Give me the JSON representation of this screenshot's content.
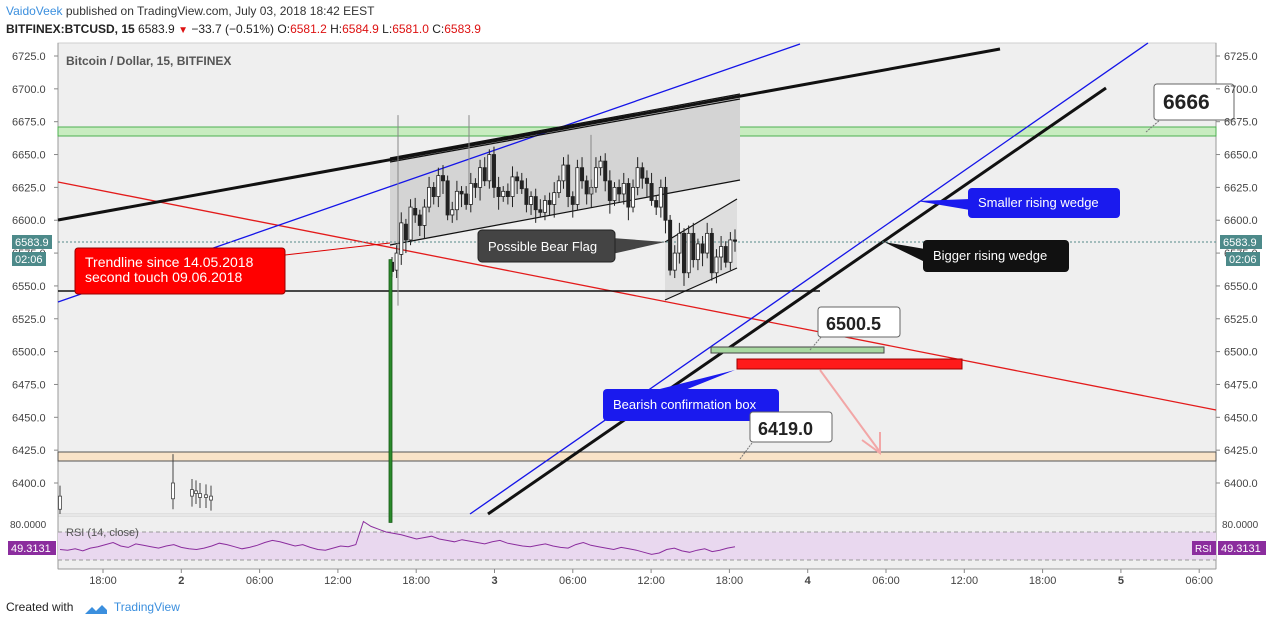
{
  "header": {
    "author": "VaidoVeek",
    "published_text": "published on TradingView.com, July 03, 2018 18:42 EEST",
    "symbol": "BITFINEX:BTCUSD, 15",
    "last": "6583.9",
    "change": "−33.7 (−0.51%)",
    "o_label": "O:",
    "o": "6581.2",
    "h_label": "H:",
    "h": "6584.9",
    "l_label": "L:",
    "l": "6581.0",
    "c_label": "C:",
    "c": "6583.9"
  },
  "footer": {
    "created_with": "Created with",
    "brand": "TradingView"
  },
  "colors": {
    "price_box": "#7a7a7a",
    "candle": "#222222",
    "green_zone": "#c8ecc0",
    "orange_zone": "#f9e3c8",
    "red_line": "#e31b1b",
    "blue_line": "#1414e8",
    "rsi_line": "#8b2d9e",
    "rsi_band": "#e9d8ef"
  },
  "chart_data": {
    "type": "candlestick",
    "title": "Bitcoin / Dollar, 15, BITFINEX",
    "y_ticks": [
      6725.0,
      6700.0,
      6675.0,
      6650.0,
      6625.0,
      6600.0,
      6575.0,
      6550.0,
      6525.0,
      6500.0,
      6475.0,
      6450.0,
      6425.0,
      6400.0
    ],
    "ylim": [
      6370,
      6735
    ],
    "x_ticks": [
      "18:00",
      "2",
      "06:00",
      "12:00",
      "18:00",
      "3",
      "06:00",
      "12:00",
      "18:00",
      "4",
      "06:00",
      "12:00",
      "18:00",
      "5",
      "06:00"
    ],
    "current_price": "6583.9",
    "current_countdown": "02:06",
    "zones": [
      {
        "name": "green-resistance",
        "from": 6664,
        "to": 6671
      },
      {
        "name": "orange-support",
        "from": 6417,
        "to": 6423
      }
    ],
    "annotations": [
      {
        "text": "Trendline since 14.05.2018\nsecond touch 09.06.2018",
        "style": "red"
      },
      {
        "text": "Possible Bear Flag",
        "style": "gray"
      },
      {
        "text": "Smaller rising wedge",
        "style": "blue"
      },
      {
        "text": "Bigger rising wedge",
        "style": "black"
      },
      {
        "text": "Bearish confirmation box",
        "style": "blue"
      },
      {
        "text": "6666",
        "style": "price"
      },
      {
        "text": "6500.5",
        "style": "price"
      },
      {
        "text": "6419.0",
        "style": "price"
      }
    ],
    "rsi": {
      "label": "RSI (14, close)",
      "tag": "RSI",
      "value": "49.3131",
      "top_tick": "80.0000",
      "upper": 70,
      "lower": 30,
      "values": [
        45,
        44,
        46,
        43,
        47,
        49,
        52,
        55,
        50,
        48,
        53,
        51,
        49,
        47,
        50,
        52,
        48,
        46,
        45,
        47,
        50,
        54,
        52,
        49,
        46,
        48,
        51,
        55,
        58,
        56,
        53,
        50,
        52,
        48,
        45,
        44,
        47,
        50,
        49,
        52,
        85,
        78,
        74,
        70,
        68,
        66,
        63,
        60,
        62,
        64,
        60,
        58,
        56,
        59,
        57,
        55,
        53,
        56,
        58,
        54,
        52,
        50,
        49,
        51,
        53,
        50,
        48,
        47,
        52,
        55,
        51,
        49,
        47,
        45,
        48,
        46,
        44,
        41,
        38,
        40,
        45,
        47,
        43,
        41,
        44,
        46,
        42,
        44,
        47,
        49
      ]
    },
    "candles": [
      [
        6568,
        6561
      ],
      [
        6562,
        6575
      ],
      [
        6574,
        6598
      ],
      [
        6597,
        6585
      ],
      [
        6585,
        6610
      ],
      [
        6609,
        6604
      ],
      [
        6604,
        6596
      ],
      [
        6596,
        6610
      ],
      [
        6610,
        6625
      ],
      [
        6625,
        6618
      ],
      [
        6618,
        6634
      ],
      [
        6634,
        6630
      ],
      [
        6630,
        6604
      ],
      [
        6604,
        6608
      ],
      [
        6608,
        6622
      ],
      [
        6622,
        6620
      ],
      [
        6620,
        6612
      ],
      [
        6612,
        6628
      ],
      [
        6628,
        6625
      ],
      [
        6625,
        6640
      ],
      [
        6640,
        6630
      ],
      [
        6630,
        6650
      ],
      [
        6650,
        6625
      ],
      [
        6625,
        6618
      ],
      [
        6618,
        6622
      ],
      [
        6622,
        6618
      ],
      [
        6618,
        6633
      ],
      [
        6633,
        6630
      ],
      [
        6630,
        6624
      ],
      [
        6624,
        6612
      ],
      [
        6612,
        6618
      ],
      [
        6618,
        6608
      ],
      [
        6608,
        6606
      ],
      [
        6606,
        6615
      ],
      [
        6615,
        6612
      ],
      [
        6612,
        6621
      ],
      [
        6621,
        6630
      ],
      [
        6630,
        6642
      ],
      [
        6642,
        6618
      ],
      [
        6618,
        6612
      ],
      [
        6612,
        6640
      ],
      [
        6640,
        6630
      ],
      [
        6630,
        6620
      ],
      [
        6620,
        6625
      ],
      [
        6625,
        6640
      ],
      [
        6640,
        6645
      ],
      [
        6645,
        6630
      ],
      [
        6630,
        6615
      ],
      [
        6615,
        6625
      ],
      [
        6625,
        6620
      ],
      [
        6620,
        6628
      ],
      [
        6628,
        6610
      ],
      [
        6610,
        6625
      ],
      [
        6625,
        6640
      ],
      [
        6640,
        6632
      ],
      [
        6632,
        6628
      ],
      [
        6628,
        6615
      ],
      [
        6615,
        6610
      ],
      [
        6610,
        6625
      ],
      [
        6625,
        6600
      ],
      [
        6600,
        6562
      ],
      [
        6562,
        6575
      ],
      [
        6575,
        6590
      ],
      [
        6590,
        6560
      ],
      [
        6560,
        6590
      ],
      [
        6590,
        6570
      ],
      [
        6570,
        6582
      ],
      [
        6582,
        6575
      ],
      [
        6575,
        6590
      ],
      [
        6590,
        6560
      ],
      [
        6560,
        6572
      ],
      [
        6572,
        6580
      ],
      [
        6580,
        6568
      ],
      [
        6568,
        6585
      ],
      [
        6585,
        6584
      ]
    ],
    "spike_candles": [
      [
        6390,
        6380
      ],
      [
        6400,
        6388
      ],
      [
        6395,
        6390
      ],
      [
        6392,
        6394
      ],
      [
        6389,
        6392
      ],
      [
        6391,
        6389
      ],
      [
        6387,
        6390
      ]
    ]
  }
}
